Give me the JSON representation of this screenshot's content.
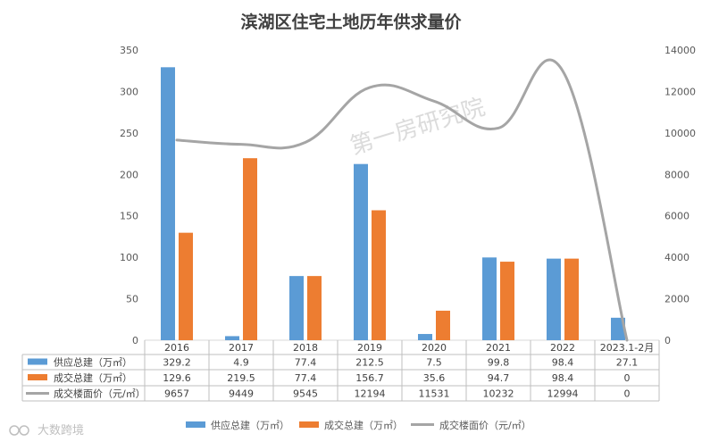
{
  "chart_data": {
    "type": "bar",
    "title": "滨湖区住宅土地历年供求量价",
    "categories": [
      "2016",
      "2017",
      "2018",
      "2019",
      "2020",
      "2021",
      "2022",
      "2023.1-2月"
    ],
    "series": [
      {
        "name": "供应总建（万㎡）",
        "kind": "bar",
        "axis": "left",
        "color": "#5b9bd5",
        "values": [
          329.2,
          4.9,
          77.4,
          212.5,
          7.5,
          99.8,
          98.4,
          27.1
        ],
        "labels": [
          "329.2",
          "4.9",
          "77.4",
          "212.5",
          "7.5",
          "99.8",
          "98.4",
          "27.1"
        ]
      },
      {
        "name": "成交总建（万㎡）",
        "kind": "bar",
        "axis": "left",
        "color": "#ed7d31",
        "values": [
          129.6,
          219.5,
          77.4,
          156.7,
          35.6,
          94.7,
          98.4,
          0
        ],
        "labels": [
          "129.6",
          "219.5",
          "77.4",
          "156.7",
          "35.6",
          "94.7",
          "98.4",
          "0"
        ]
      },
      {
        "name": "成交楼面价（元/㎡）",
        "kind": "line",
        "axis": "right",
        "color": "#a5a5a5",
        "values": [
          9657,
          9449,
          9545,
          12194,
          11531,
          10232,
          12994,
          0
        ],
        "labels": [
          "9657",
          "9449",
          "9545",
          "12194",
          "11531",
          "10232",
          "12994",
          "0"
        ]
      }
    ],
    "y_left": {
      "min": 0,
      "max": 350,
      "ticks": [
        "0",
        "50",
        "100",
        "150",
        "200",
        "250",
        "300",
        "350"
      ]
    },
    "y_right": {
      "min": 0,
      "max": 14000,
      "ticks": [
        "0",
        "2000",
        "4000",
        "6000",
        "8000",
        "10000",
        "12000",
        "14000"
      ]
    },
    "legend_position": "bottom",
    "grid": false,
    "data_table": true
  },
  "watermark": {
    "main": "第一房研究院",
    "corner": "大数跨境"
  }
}
